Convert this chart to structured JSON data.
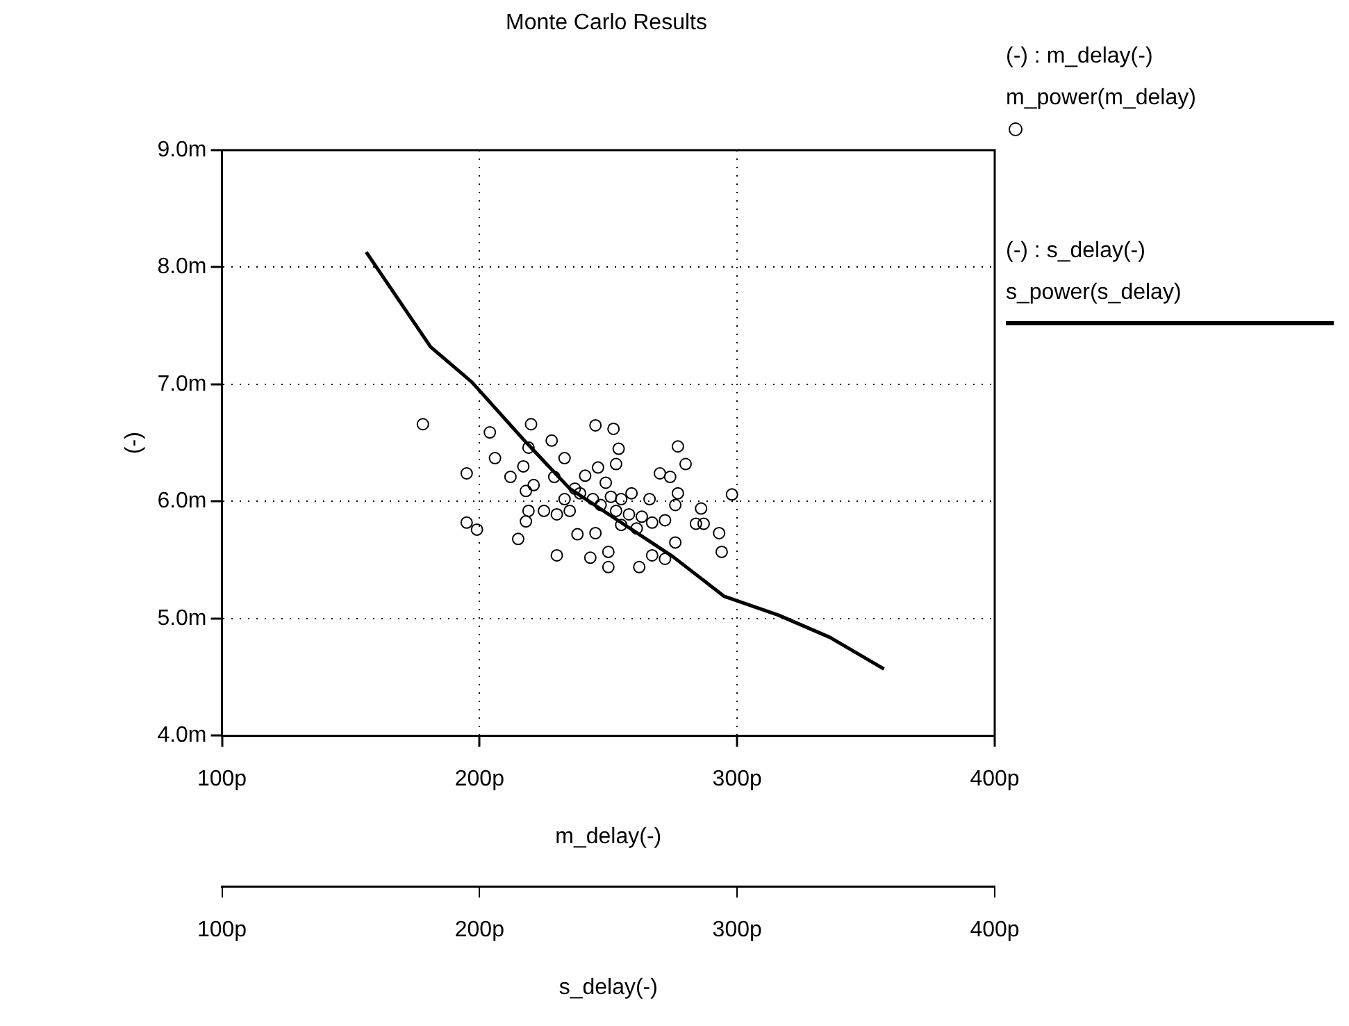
{
  "chart_data": {
    "type": "scatter",
    "title": "Monte Carlo Results",
    "xlabel": "m_delay(-)",
    "x2label": "s_delay(-)",
    "ylabel": "(-)",
    "annotations": [
      "(-) : m_delay(-)",
      "(-) : s_delay(-)"
    ],
    "xlim": [
      100,
      400
    ],
    "xticks": [
      {
        "value": 100,
        "label": "100p"
      },
      {
        "value": 200,
        "label": "200p"
      },
      {
        "value": 300,
        "label": "300p"
      },
      {
        "value": 400,
        "label": "400p"
      }
    ],
    "x2lim": [
      100,
      400
    ],
    "x2ticks": [
      {
        "value": 100,
        "label": "100p"
      },
      {
        "value": 200,
        "label": "200p"
      },
      {
        "value": 300,
        "label": "300p"
      },
      {
        "value": 400,
        "label": "400p"
      }
    ],
    "ylim": [
      4,
      9
    ],
    "yticks": [
      {
        "value": 4,
        "label": "4.0m"
      },
      {
        "value": 5,
        "label": "5.0m"
      },
      {
        "value": 6,
        "label": "6.0m"
      },
      {
        "value": 7,
        "label": "7.0m"
      },
      {
        "value": 8,
        "label": "8.0m"
      },
      {
        "value": 9,
        "label": "9.0m"
      }
    ],
    "grid": true,
    "legend": "right",
    "series": [
      {
        "name": "m_power(m_delay)",
        "type": "scatter",
        "marker": "circle",
        "color": "#000000",
        "x": [
          178,
          204,
          206,
          195,
          195,
          199,
          215,
          212,
          217,
          220,
          228,
          233,
          219,
          221,
          218,
          219,
          218,
          225,
          230,
          230,
          233,
          229,
          238,
          245,
          243,
          250,
          250,
          262,
          267,
          272,
          276,
          245,
          252,
          254,
          253,
          246,
          241,
          249,
          239,
          244,
          247,
          251,
          255,
          253,
          258,
          255,
          263,
          266,
          270,
          274,
          277,
          280,
          277,
          276,
          272,
          267,
          286,
          284,
          287,
          293,
          294,
          298,
          235,
          237,
          261,
          259
        ],
        "values": [
          6.66,
          6.59,
          6.37,
          6.24,
          5.82,
          5.76,
          5.68,
          6.21,
          6.3,
          6.66,
          6.52,
          6.37,
          6.46,
          6.14,
          6.09,
          5.92,
          5.83,
          5.92,
          5.54,
          5.89,
          6.02,
          6.21,
          5.72,
          5.73,
          5.52,
          5.57,
          5.44,
          5.44,
          5.54,
          5.51,
          5.65,
          6.65,
          6.62,
          6.45,
          6.32,
          6.29,
          6.22,
          6.16,
          6.07,
          6.02,
          5.97,
          6.04,
          6.02,
          5.92,
          5.89,
          5.8,
          5.87,
          6.02,
          6.24,
          6.21,
          6.47,
          6.32,
          6.07,
          5.97,
          5.84,
          5.82,
          5.94,
          5.81,
          5.81,
          5.73,
          5.57,
          6.06,
          5.92,
          6.11,
          5.77,
          6.07
        ]
      },
      {
        "name": "s_power(s_delay)",
        "type": "line",
        "axis": "x2",
        "marker": "none",
        "line_style": "solid",
        "color": "#000000",
        "x": [
          156,
          181,
          197,
          217,
          235,
          255,
          275,
          295,
          316,
          336,
          357
        ],
        "values": [
          8.13,
          7.32,
          7.02,
          6.53,
          6.11,
          5.82,
          5.53,
          5.19,
          5.03,
          4.84,
          4.57
        ]
      }
    ]
  }
}
